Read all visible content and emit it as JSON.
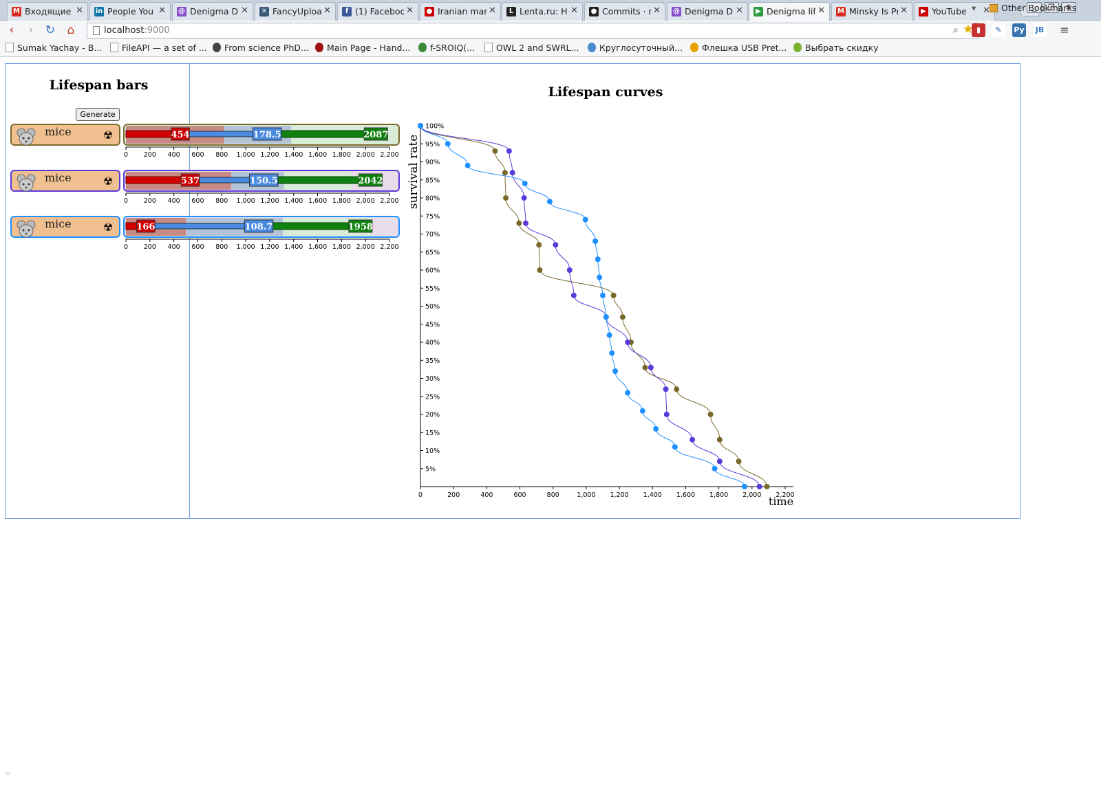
{
  "browser": {
    "tabs": [
      {
        "title": "Входящие",
        "icon": "gmail-icon",
        "color": "#d93025",
        "glyph": "M"
      },
      {
        "title": "People You",
        "icon": "linkedin-icon",
        "color": "#0e76a8",
        "glyph": "in"
      },
      {
        "title": "Denigma D",
        "icon": "denigma-icon",
        "color": "#8a4fd0",
        "glyph": "@"
      },
      {
        "title": "FancyUploa",
        "icon": "tools-icon",
        "color": "#3a5a7a",
        "glyph": "✕"
      },
      {
        "title": "(1) Faceboo",
        "icon": "facebook-icon",
        "color": "#3b5998",
        "glyph": "f"
      },
      {
        "title": "Iranian mar",
        "icon": "red-circle-icon",
        "color": "#cc0000",
        "glyph": "●"
      },
      {
        "title": "Lenta.ru: H",
        "icon": "lenta-icon",
        "color": "#222222",
        "glyph": "L"
      },
      {
        "title": "Commits · r",
        "icon": "github-icon",
        "color": "#222222",
        "glyph": "●"
      },
      {
        "title": "Denigma D",
        "icon": "denigma-icon",
        "color": "#8a4fd0",
        "glyph": "@"
      },
      {
        "title": "Denigma lif",
        "icon": "play-icon",
        "color": "#2e9d3f",
        "glyph": "▶",
        "active": true
      },
      {
        "title": "Minsky Is Pr",
        "icon": "gmail-icon",
        "color": "#d93025",
        "glyph": "M"
      },
      {
        "title": "YouTube",
        "icon": "youtube-icon",
        "color": "#cc0000",
        "glyph": "▶"
      }
    ],
    "url_host": "localhost",
    "url_port": ":9000",
    "bookmarks": [
      {
        "label": "Sumak Yachay - B...",
        "icon": "page-icon"
      },
      {
        "label": "FileAPI — a set of ...",
        "icon": "page-icon"
      },
      {
        "label": "From science PhD...",
        "icon": "microscope-icon"
      },
      {
        "label": "Main Page - Hand...",
        "icon": "bars-icon"
      },
      {
        "label": "f-SROIQ(...",
        "icon": "gear-icon"
      },
      {
        "label": "OWL 2 and SWRL...",
        "icon": "page-icon"
      },
      {
        "label": "Круглосуточный...",
        "icon": "bird-icon"
      },
      {
        "label": "Флешка USB Pret...",
        "icon": "coin-icon"
      },
      {
        "label": "Выбрать скидку",
        "icon": "tag-icon"
      }
    ],
    "other_bookmarks": "Other Bookmarks"
  },
  "bars_panel": {
    "title": "Lifespan bars",
    "generate_label": "Generate",
    "rows": [
      {
        "species": "mice",
        "color": "#7a6a2a",
        "bg": "#d8ecd8",
        "start": 454,
        "mid": 1178.5,
        "mid_label": "178.5",
        "end": 2087,
        "shade_red_end": 820,
        "shade_blue_end": 1380,
        "shade_green_end": 2200
      },
      {
        "species": "mice",
        "color": "#5a3ad8",
        "bg": "#e8dce8",
        "start": 537,
        "mid": 1150.5,
        "mid_label": "150.5",
        "end": 2042,
        "shade_red_end": 880,
        "shade_blue_end": 1320,
        "shade_green_end": 1880
      },
      {
        "species": "mice",
        "color": "#1e90ff",
        "bg": "#e8dce8",
        "start": 166,
        "mid": 1108.7,
        "mid_label": "108.7",
        "end": 1958,
        "shade_red_end": 500,
        "shade_blue_end": 1310,
        "shade_green_end": 2050
      }
    ],
    "axis_ticks": [
      "0",
      "200",
      "400",
      "600",
      "800",
      "1,000",
      "1,200",
      "1,400",
      "1,600",
      "1,800",
      "2,000",
      "2,200"
    ]
  },
  "chart_data": {
    "type": "line",
    "title": "Lifespan curves",
    "xlabel": "time",
    "ylabel": "survival rate",
    "xlim": [
      0,
      2200
    ],
    "ylim": [
      0,
      100
    ],
    "x_ticks": [
      "0",
      "200",
      "400",
      "600",
      "800",
      "1,000",
      "1,200",
      "1,400",
      "1,600",
      "1,800",
      "2,000",
      "2,200"
    ],
    "y_ticks": [
      "5%",
      "10%",
      "15%",
      "20%",
      "25%",
      "30%",
      "35%",
      "40%",
      "45%",
      "50%",
      "55%",
      "60%",
      "65%",
      "70%",
      "75%",
      "80%",
      "85%",
      "90%",
      "95%",
      "100%"
    ],
    "series": [
      {
        "color": "#7a6a2a",
        "points": [
          [
            0,
            100
          ],
          [
            450,
            93
          ],
          [
            510,
            87
          ],
          [
            515,
            80
          ],
          [
            595,
            73
          ],
          [
            715,
            67
          ],
          [
            720,
            60
          ],
          [
            1165,
            53
          ],
          [
            1220,
            47
          ],
          [
            1270,
            40
          ],
          [
            1355,
            33
          ],
          [
            1545,
            27
          ],
          [
            1750,
            20
          ],
          [
            1805,
            13
          ],
          [
            1920,
            7
          ],
          [
            2090,
            0
          ]
        ]
      },
      {
        "color": "#5a3ad8",
        "points": [
          [
            0,
            100
          ],
          [
            535,
            93
          ],
          [
            555,
            87
          ],
          [
            625,
            80
          ],
          [
            635,
            73
          ],
          [
            815,
            67
          ],
          [
            900,
            60
          ],
          [
            925,
            53
          ],
          [
            1120,
            47
          ],
          [
            1250,
            40
          ],
          [
            1390,
            33
          ],
          [
            1480,
            27
          ],
          [
            1485,
            20
          ],
          [
            1640,
            13
          ],
          [
            1805,
            7
          ],
          [
            2045,
            0
          ]
        ]
      },
      {
        "color": "#1e90ff",
        "points": [
          [
            0,
            100
          ],
          [
            165,
            95
          ],
          [
            285,
            89
          ],
          [
            630,
            84
          ],
          [
            780,
            79
          ],
          [
            995,
            74
          ],
          [
            1055,
            68
          ],
          [
            1070,
            63
          ],
          [
            1080,
            58
          ],
          [
            1100,
            53
          ],
          [
            1120,
            47
          ],
          [
            1140,
            42
          ],
          [
            1155,
            37
          ],
          [
            1175,
            32
          ],
          [
            1250,
            26
          ],
          [
            1340,
            21
          ],
          [
            1420,
            16
          ],
          [
            1535,
            11
          ],
          [
            1775,
            5
          ],
          [
            1955,
            0
          ]
        ]
      }
    ]
  },
  "status": {
    "icon": "loading-icon"
  }
}
